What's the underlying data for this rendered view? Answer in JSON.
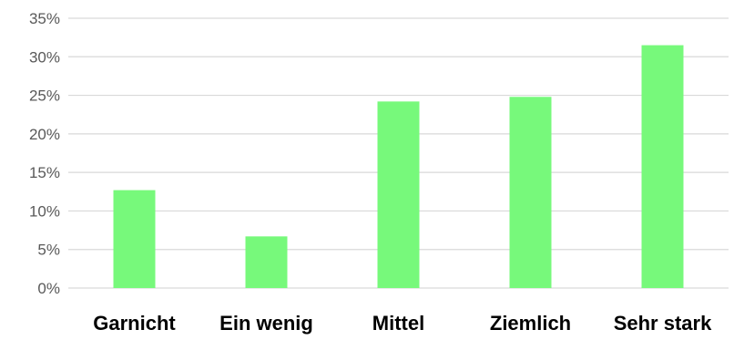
{
  "chart_data": {
    "type": "bar",
    "categories": [
      "Garnicht",
      "Ein wenig",
      "Mittel",
      "Ziemlich",
      "Sehr stark"
    ],
    "values": [
      12.7,
      6.7,
      24.2,
      24.8,
      31.5
    ],
    "unit": "%",
    "ylim": [
      0,
      35
    ],
    "yticks": [
      0,
      5,
      10,
      15,
      20,
      25,
      30,
      35
    ],
    "ytick_labels": [
      "0%",
      "5%",
      "10%",
      "15%",
      "20%",
      "25%",
      "30%",
      "35%"
    ],
    "grid": true,
    "legend": "none",
    "title": "",
    "xlabel": "",
    "ylabel": "",
    "colors": {
      "bar": "#77f97b",
      "grid": "#d9d9d9",
      "tick_text": "#595959",
      "category_text": "#000000"
    }
  }
}
